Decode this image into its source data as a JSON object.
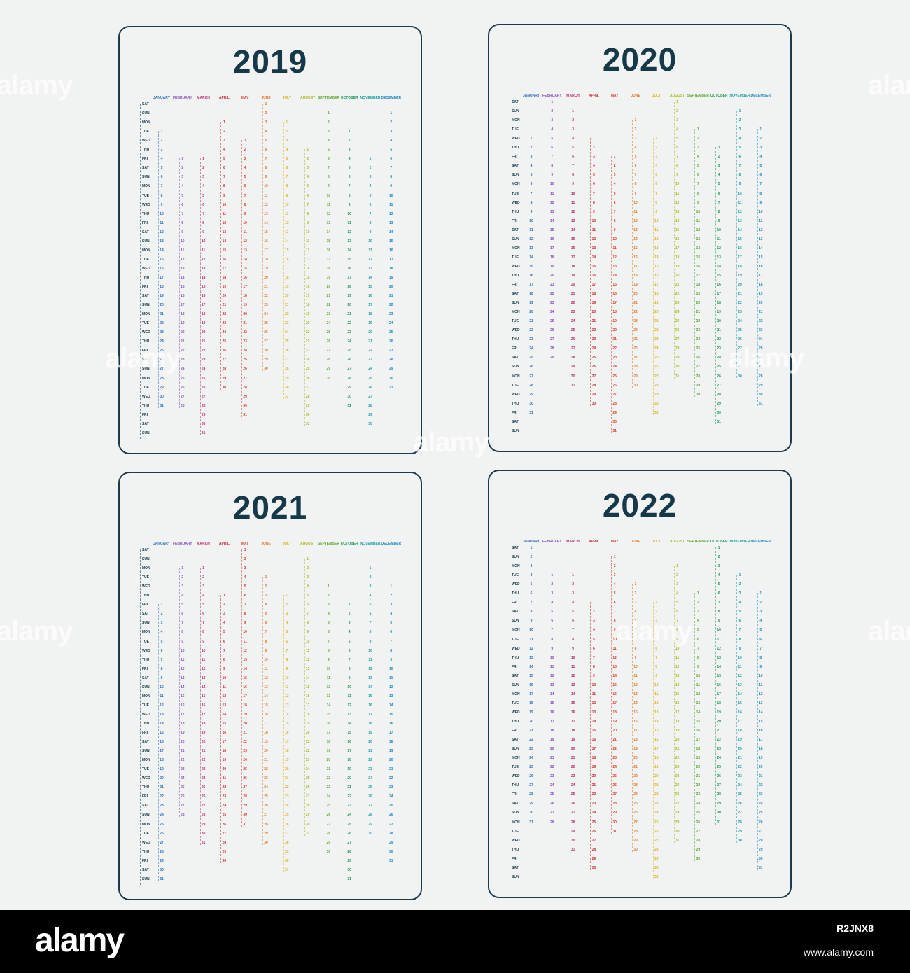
{
  "calendars": [
    {
      "year": "2019",
      "weekday_start": "SAT",
      "first_day_offsets": [
        3,
        6,
        6,
        2,
        4,
        0,
        2,
        5,
        1,
        3,
        6,
        1
      ],
      "month_lengths": [
        31,
        28,
        31,
        30,
        31,
        30,
        31,
        31,
        30,
        31,
        30,
        31
      ]
    },
    {
      "year": "2020",
      "weekday_start": "SAT",
      "first_day_offsets": [
        4,
        0,
        1,
        4,
        6,
        2,
        4,
        0,
        3,
        5,
        1,
        3
      ],
      "month_lengths": [
        31,
        29,
        31,
        30,
        31,
        30,
        31,
        31,
        30,
        31,
        30,
        31
      ]
    },
    {
      "year": "2021",
      "weekday_start": "SAT",
      "first_day_offsets": [
        6,
        2,
        2,
        5,
        0,
        3,
        5,
        1,
        4,
        6,
        2,
        4
      ],
      "month_lengths": [
        31,
        28,
        31,
        30,
        31,
        30,
        31,
        31,
        30,
        31,
        30,
        31
      ]
    },
    {
      "year": "2022",
      "weekday_start": "SAT",
      "first_day_offsets": [
        0,
        3,
        3,
        6,
        1,
        4,
        6,
        2,
        5,
        0,
        3,
        5
      ],
      "month_lengths": [
        31,
        28,
        31,
        30,
        31,
        30,
        31,
        31,
        30,
        31,
        30,
        31
      ]
    }
  ],
  "months": [
    "JANUARY",
    "FEBRUARY",
    "MARCH",
    "APRIL",
    "MAY",
    "JUNE",
    "JULY",
    "AUGUST",
    "SEPTEMBER",
    "OCTOBER",
    "NOVEMBER",
    "DECEMBER"
  ],
  "weekday_labels": [
    "SAT",
    "SUN",
    "MON",
    "TUE",
    "WED",
    "THU",
    "FRI"
  ],
  "month_colors": [
    "#2a6fb8",
    "#8a4fc0",
    "#b8306e",
    "#c8303a",
    "#d8402a",
    "#e0782a",
    "#e0b020",
    "#a8b81e",
    "#5ea830",
    "#1e9a5a",
    "#1ea0a8",
    "#1e88c0"
  ],
  "watermark_text": "alamy",
  "footer": {
    "logo": "alamy",
    "image_id": "R2JNX8",
    "site": "www.alamy.com"
  }
}
